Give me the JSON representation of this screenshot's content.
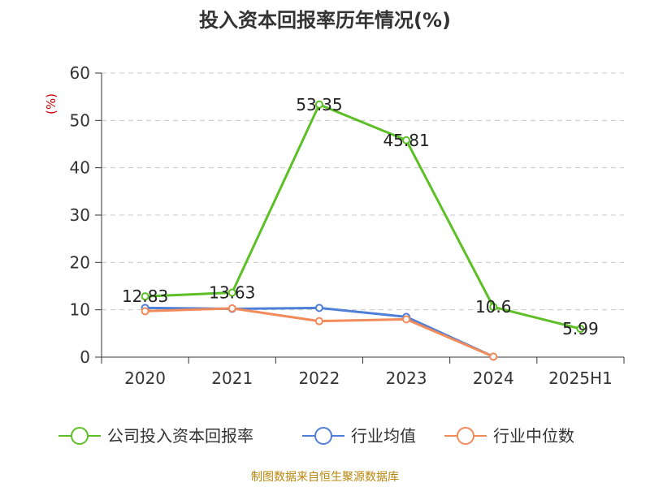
{
  "chart_data": {
    "type": "line",
    "title": "投入资本回报率历年情况(%)",
    "ylabel": "(%)",
    "xlabel": "",
    "categories": [
      "2020",
      "2021",
      "2022",
      "2023",
      "2024",
      "2025H1"
    ],
    "ylim": [
      0,
      60
    ],
    "yticks": [
      0,
      10,
      20,
      30,
      40,
      50,
      60
    ],
    "grid": true,
    "legend_position": "bottom",
    "series": [
      {
        "name": "公司投入资本回报率",
        "color": "#5cbf26",
        "values": [
          12.83,
          13.63,
          53.35,
          45.81,
          10.6,
          5.99
        ],
        "labels": [
          "12.83",
          "13.63",
          "53.35",
          "45.81",
          "10.6",
          "5.99"
        ]
      },
      {
        "name": "行业均值",
        "color": "#4f7fd8",
        "values": [
          10.4,
          10.2,
          10.4,
          8.5,
          0.1,
          null
        ]
      },
      {
        "name": "行业中位数",
        "color": "#f28b5a",
        "values": [
          9.7,
          10.3,
          7.6,
          8.0,
          0.1,
          null
        ]
      }
    ],
    "source": "制图数据来自恒生聚源数据库"
  }
}
